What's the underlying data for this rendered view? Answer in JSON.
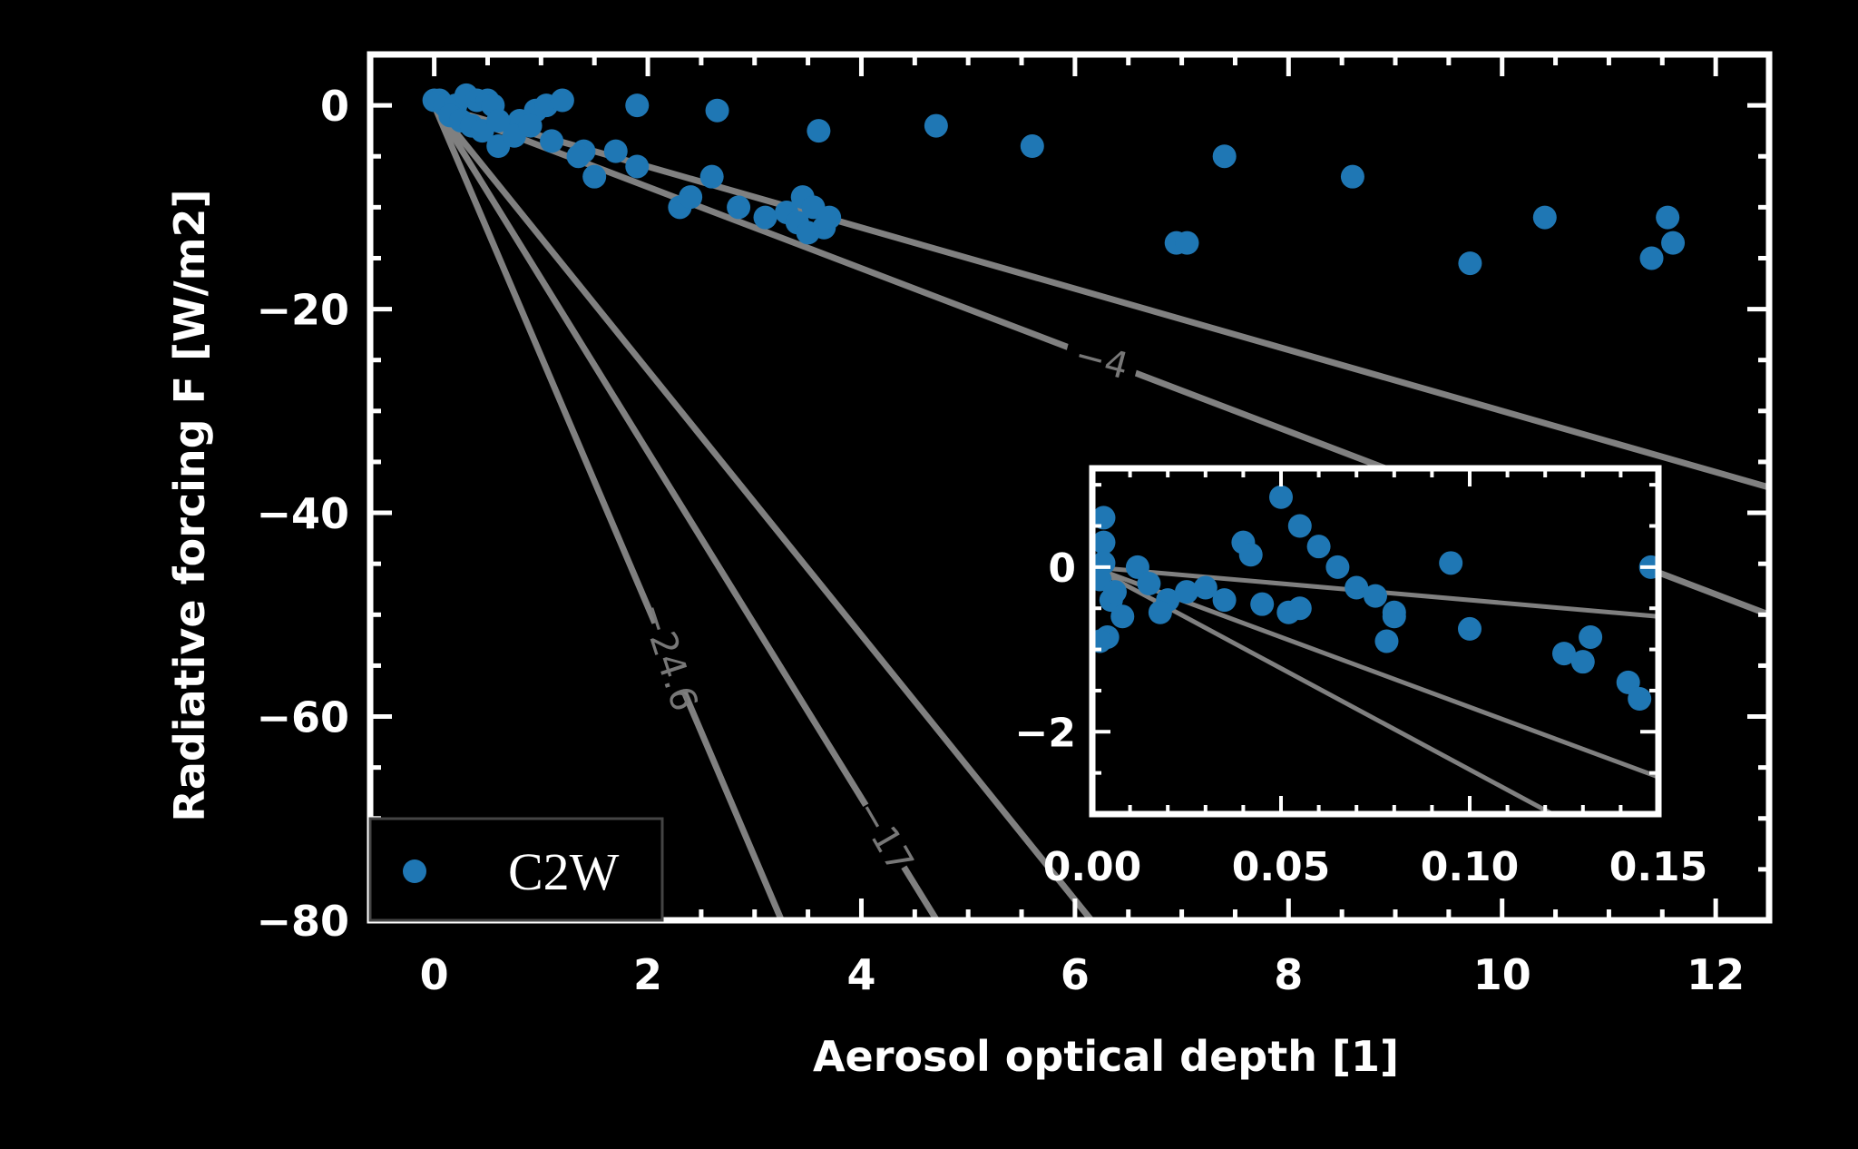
{
  "chart_data": [
    {
      "type": "scatter",
      "xlabel": "Aerosol optical depth [1]",
      "ylabel": "Radiative forcing F [W/m2]",
      "xlim": [
        -0.6,
        12.5
      ],
      "ylim": [
        -80,
        5
      ],
      "xticks": [
        "0",
        "2",
        "4",
        "6",
        "8",
        "10",
        "12"
      ],
      "yticks": [
        "0",
        "−20",
        "−40",
        "−60",
        "−80"
      ],
      "legend": {
        "position": "bottom-left",
        "entries": [
          "C2W"
        ]
      },
      "colors": {
        "series": "#1f77b4",
        "reference_lines": "#808080",
        "frame": "#ffffff",
        "background": "#000000"
      },
      "reference_lines": [
        {
          "label": "−4",
          "slope": -4
        },
        {
          "label": "",
          "slope": -3
        },
        {
          "label": "−17",
          "slope": -17
        },
        {
          "label": "−24.6",
          "slope": -24.6
        },
        {
          "label": "",
          "slope": -13
        }
      ],
      "series": [
        {
          "name": "C2W",
          "x": [
            0.0,
            0.05,
            0.1,
            0.2,
            0.3,
            0.4,
            0.5,
            0.55,
            0.15,
            0.25,
            0.35,
            0.45,
            0.6,
            0.8,
            0.95,
            1.05,
            1.2,
            0.75,
            0.9,
            1.1,
            0.6,
            1.4,
            1.5,
            1.7,
            1.35,
            1.9,
            2.3,
            2.6,
            2.4,
            2.85,
            3.1,
            3.3,
            3.45,
            3.55,
            3.4,
            3.65,
            3.7,
            3.5,
            1.9,
            2.65,
            3.6,
            4.7,
            5.6,
            7.4,
            8.6,
            6.95,
            7.05,
            9.7,
            10.4,
            11.4,
            11.55,
            11.6
          ],
          "y": [
            0.5,
            0.5,
            0.0,
            0.0,
            1.0,
            0.5,
            0.5,
            0.0,
            -1.0,
            -1.5,
            -2.0,
            -2.5,
            -4.0,
            -1.5,
            -0.5,
            0.0,
            0.5,
            -3.0,
            -2.0,
            -3.5,
            -1.5,
            -4.5,
            -7.0,
            -4.5,
            -5.0,
            -6.0,
            -10.0,
            -7.0,
            -9.0,
            -10.0,
            -11.0,
            -10.5,
            -9.0,
            -10.0,
            -11.5,
            -12.0,
            -11.0,
            -12.5,
            0.0,
            -0.5,
            -2.5,
            -2.0,
            -4.0,
            -5.0,
            -7.0,
            -13.5,
            -13.5,
            -15.5,
            -11.0,
            -15.0,
            -11.0,
            -13.5
          ]
        }
      ]
    },
    {
      "type": "scatter",
      "xlim": [
        0.0,
        0.15
      ],
      "ylim": [
        -3.0,
        1.2
      ],
      "xticks": [
        "0.00",
        "0.05",
        "0.10",
        "0.15"
      ],
      "yticks": [
        "0",
        "−2"
      ],
      "reference_lines": [
        {
          "slope": -4
        },
        {
          "slope": -17
        },
        {
          "slope": -24.6
        }
      ],
      "series": [
        {
          "name": "C2W",
          "x": [
            0.003,
            0.003,
            0.003,
            0.002,
            0.005,
            0.008,
            0.004,
            0.002,
            0.006,
            0.012,
            0.015,
            0.02,
            0.018,
            0.025,
            0.03,
            0.035,
            0.04,
            0.042,
            0.045,
            0.05,
            0.055,
            0.052,
            0.06,
            0.065,
            0.07,
            0.075,
            0.08,
            0.078,
            0.095,
            0.1,
            0.055,
            0.08,
            0.125,
            0.13,
            0.132,
            0.142,
            0.145,
            0.148
          ],
          "y": [
            0.6,
            0.3,
            0.05,
            -0.15,
            -0.4,
            -0.6,
            -0.85,
            -0.9,
            -0.3,
            0.0,
            -0.2,
            -0.4,
            -0.55,
            -0.3,
            -0.25,
            -0.4,
            0.3,
            0.15,
            -0.45,
            0.85,
            0.5,
            -0.55,
            0.25,
            0.0,
            -0.25,
            -0.35,
            -0.6,
            -0.9,
            0.05,
            -0.75,
            -0.5,
            -0.55,
            -1.05,
            -1.15,
            -0.85,
            -1.4,
            -1.6,
            0.0
          ]
        }
      ]
    }
  ]
}
